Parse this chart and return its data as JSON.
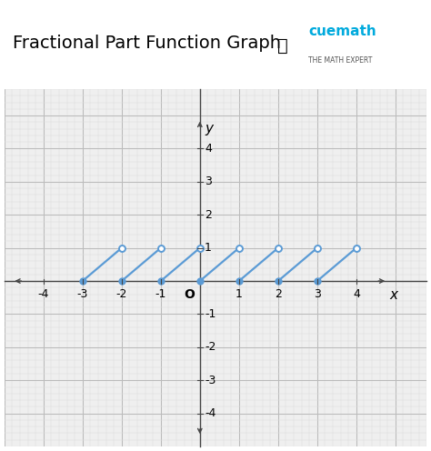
{
  "title": "Fractional Part Function Graph",
  "xlim": [
    -4.8,
    4.8
  ],
  "ylim": [
    -4.7,
    4.9
  ],
  "x_ticks": [
    -4,
    -3,
    -2,
    -1,
    1,
    2,
    3,
    4
  ],
  "y_ticks": [
    -4,
    -3,
    -2,
    -1,
    1,
    2,
    3,
    4
  ],
  "x_tick_labels": [
    "-4",
    "-3",
    "-2",
    "-1",
    "1",
    "2",
    "3",
    "4"
  ],
  "y_tick_labels": [
    "-4",
    "-3",
    "-2",
    "-1",
    "1",
    "2",
    "3",
    "4"
  ],
  "segments": [
    {
      "x_start": -3,
      "y_start": 0,
      "x_end": -2,
      "y_end": 1
    },
    {
      "x_start": -2,
      "y_start": 0,
      "x_end": -1,
      "y_end": 1
    },
    {
      "x_start": -1,
      "y_start": 0,
      "x_end": 0,
      "y_end": 1
    },
    {
      "x_start": 0,
      "y_start": 0,
      "x_end": 1,
      "y_end": 1
    },
    {
      "x_start": 1,
      "y_start": 0,
      "x_end": 2,
      "y_end": 1
    },
    {
      "x_start": 2,
      "y_start": 0,
      "x_end": 3,
      "y_end": 1
    },
    {
      "x_start": 3,
      "y_start": 0,
      "x_end": 4,
      "y_end": 1
    }
  ],
  "line_color": "#5b9bd5",
  "closed_dot_color": "#5b9bd5",
  "open_dot_color": "#5b9bd5",
  "background_color": "#f0f0f0",
  "plot_bg_color": "#efefef",
  "grid_major_color": "#bbbbbb",
  "grid_minor_color": "#dddddd",
  "title_fontsize": 14,
  "axis_label_fontsize": 11,
  "tick_fontsize": 9,
  "origin_label": "O",
  "xlabel": "x",
  "ylabel": "y",
  "dot_size": 5,
  "line_width": 1.6,
  "cuemath_text": "cuemath",
  "cuemath_sub": "THE MATH EXPERT"
}
